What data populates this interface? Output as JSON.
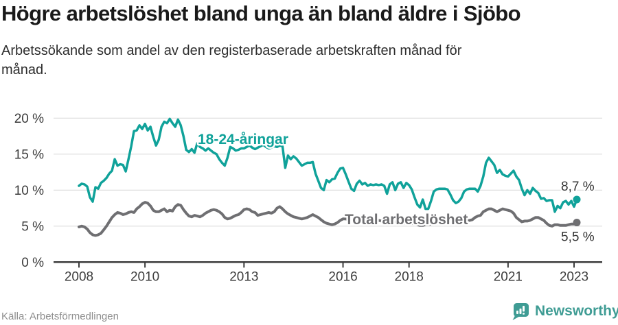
{
  "header": {
    "title": "Högre arbetslöshet bland unga än bland äldre i Sjöbo",
    "subtitle_lines": [
      "Arbetssökande som andel av den registerbaserade arbetskraften månad för",
      "månad."
    ]
  },
  "footer": {
    "source": "Källa: Arbetsförmedlingen",
    "brand_name": "Newsworthy",
    "brand_color": "#3F9C94"
  },
  "chart_data": {
    "type": "line",
    "x_start_year": 2008,
    "x_interval": "monthly",
    "grid": "horizontal",
    "y_axis": {
      "unit": "%",
      "range": [
        0,
        21
      ],
      "ticks": [
        {
          "value": 0,
          "label": "0 %"
        },
        {
          "value": 5,
          "label": "5 %"
        },
        {
          "value": 10,
          "label": "10 %"
        },
        {
          "value": 15,
          "label": "15 %"
        },
        {
          "value": 20,
          "label": "20 %"
        }
      ]
    },
    "x_axis": {
      "ticks": [
        {
          "year": 2008,
          "label": "2008"
        },
        {
          "year": 2010,
          "label": "2010"
        },
        {
          "year": 2013,
          "label": "2013"
        },
        {
          "year": 2016,
          "label": "2016"
        },
        {
          "year": 2018,
          "label": "2018"
        },
        {
          "year": 2021,
          "label": "2021"
        },
        {
          "year": 2023,
          "label": "2023"
        }
      ]
    },
    "series": [
      {
        "name": "18-24-åringar",
        "color": "#10A29A",
        "end_label": "8,7 %",
        "last_value": 8.7,
        "values": [
          10.6,
          10.9,
          10.8,
          10.5,
          9.0,
          8.4,
          10.4,
          10.2,
          11.0,
          11.3,
          11.7,
          12.3,
          12.7,
          14.3,
          13.4,
          13.6,
          13.5,
          12.6,
          14.3,
          16.1,
          18.2,
          18.3,
          19.0,
          18.5,
          19.2,
          18.3,
          18.8,
          17.4,
          16.2,
          17.0,
          18.8,
          19.5,
          19.3,
          19.9,
          19.3,
          18.8,
          19.8,
          19.0,
          17.5,
          15.6,
          15.3,
          15.7,
          15.2,
          16.5,
          16.0,
          15.8,
          15.5,
          15.8,
          15.5,
          15.2,
          15.0,
          14.3,
          13.8,
          13.4,
          14.5,
          16.0,
          15.8,
          15.5,
          15.6,
          15.8,
          15.8,
          16.0,
          16.2,
          15.9,
          15.7,
          15.9,
          16.1,
          16.3,
          16.0,
          15.8,
          15.9,
          16.1,
          16.0,
          16.2,
          16.1,
          13.1,
          14.8,
          14.3,
          14.7,
          14.4,
          13.9,
          13.4,
          13.6,
          13.8,
          13.8,
          13.9,
          12.3,
          11.3,
          10.3,
          10.0,
          11.4,
          11.1,
          11.5,
          11.6,
          12.4,
          13.0,
          13.1,
          12.2,
          11.2,
          10.2,
          9.9,
          10.9,
          11.3,
          10.8,
          11.0,
          10.6,
          10.8,
          10.7,
          10.8,
          10.7,
          10.8,
          10.6,
          9.5,
          10.8,
          11.1,
          10.0,
          10.9,
          11.1,
          10.3,
          11.0,
          10.7,
          10.1,
          9.0,
          8.0,
          7.6,
          8.7,
          7.4,
          7.4,
          8.5,
          9.8,
          10.1,
          10.2,
          10.2,
          10.2,
          10.1,
          9.4,
          8.6,
          8.2,
          8.4,
          8.9,
          9.8,
          10.1,
          10.2,
          10.2,
          10.2,
          9.8,
          10.6,
          11.9,
          13.8,
          14.5,
          14.0,
          13.5,
          12.4,
          12.8,
          12.2,
          12.0,
          11.9,
          12.3,
          12.7,
          11.9,
          11.4,
          10.2,
          9.3,
          10.0,
          9.5,
          10.3,
          9.9,
          9.6,
          8.8,
          8.9,
          8.5,
          8.6,
          8.6,
          7.0,
          7.8,
          7.5,
          8.3,
          8.5,
          8.0,
          8.5,
          7.7,
          8.7
        ]
      },
      {
        "name": "Total arbetslöshet",
        "color": "#6F6F72",
        "end_label": "5,5 %",
        "last_value": 5.5,
        "values": [
          4.9,
          5.0,
          4.9,
          4.6,
          4.1,
          3.8,
          3.7,
          3.8,
          4.0,
          4.5,
          5.0,
          5.6,
          6.2,
          6.6,
          6.9,
          6.8,
          6.6,
          6.7,
          6.9,
          7.0,
          6.9,
          7.4,
          7.7,
          8.1,
          8.3,
          8.2,
          7.8,
          7.2,
          7.0,
          7.0,
          7.2,
          7.4,
          7.0,
          7.2,
          7.1,
          7.7,
          8.0,
          7.9,
          7.3,
          6.8,
          6.4,
          6.3,
          6.5,
          6.4,
          6.3,
          6.5,
          6.8,
          7.0,
          7.2,
          7.3,
          7.2,
          7.0,
          6.7,
          6.2,
          6.0,
          6.1,
          6.3,
          6.5,
          6.6,
          6.9,
          7.3,
          7.4,
          7.3,
          7.0,
          6.9,
          6.5,
          6.6,
          6.7,
          6.8,
          6.9,
          6.8,
          7.0,
          7.5,
          7.7,
          7.4,
          7.0,
          6.7,
          6.5,
          6.3,
          6.2,
          6.1,
          6.0,
          6.1,
          6.2,
          6.4,
          6.6,
          6.4,
          6.2,
          5.9,
          5.6,
          5.4,
          5.3,
          5.2,
          5.3,
          5.5,
          5.8,
          6.0,
          6.0,
          5.9,
          5.8,
          5.7,
          5.6,
          5.8,
          5.9,
          5.8,
          5.7,
          5.7,
          5.8,
          5.8,
          5.8,
          5.7,
          5.6,
          5.5,
          5.5,
          5.6,
          5.6,
          5.5,
          5.4,
          5.4,
          5.5,
          5.5,
          5.4,
          5.3,
          5.2,
          5.1,
          5.1,
          5.2,
          5.2,
          5.3,
          5.3,
          5.4,
          5.5,
          5.6,
          5.6,
          5.5,
          5.5,
          5.4,
          5.4,
          5.5,
          5.6,
          5.6,
          5.7,
          5.8,
          5.9,
          6.2,
          6.4,
          6.5,
          7.0,
          7.2,
          7.4,
          7.4,
          7.2,
          7.0,
          7.2,
          7.4,
          7.3,
          7.2,
          7.1,
          6.8,
          6.2,
          5.9,
          5.6,
          5.7,
          5.7,
          5.8,
          6.0,
          6.2,
          6.2,
          6.0,
          5.8,
          5.4,
          5.1,
          5.0,
          5.2,
          5.2,
          5.1,
          5.1,
          5.1,
          5.2,
          5.3,
          5.3,
          5.5
        ]
      }
    ]
  }
}
